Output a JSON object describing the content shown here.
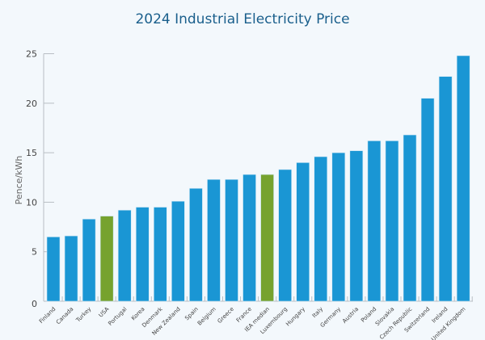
{
  "chart_data": {
    "type": "bar",
    "title": "2024 Industrial Electricity Price",
    "xlabel": "",
    "ylabel": "Pence/kWh",
    "ylim": [
      0,
      25
    ],
    "yticks": [
      0,
      5,
      10,
      15,
      20,
      25
    ],
    "grid": false,
    "categories": [
      "Finland",
      "Canada",
      "Turkey",
      "USA",
      "Portugal",
      "Korea",
      "Denmark",
      "New Zealand",
      "Spain",
      "Belgium",
      "Greece",
      "France",
      "IEA median",
      "Luxembourg",
      "Hungary",
      "Italy",
      "Germany",
      "Austria",
      "Poland",
      "Slovakia",
      "Czech Republic",
      "Switzerland",
      "Ireland",
      "United Kingdom"
    ],
    "values": [
      6.5,
      6.6,
      8.3,
      8.6,
      9.2,
      9.5,
      9.5,
      10.1,
      11.4,
      12.3,
      12.3,
      12.8,
      12.8,
      13.3,
      14.0,
      14.6,
      15.0,
      15.2,
      16.2,
      16.2,
      16.8,
      20.5,
      22.7,
      24.8
    ],
    "highlighted": [
      "USA",
      "IEA median"
    ],
    "colors": {
      "default": "#1a96d4",
      "highlight": "#76a22e",
      "title": "#1a5f8c",
      "axis": "#b8bec4",
      "text": "#444444"
    }
  }
}
